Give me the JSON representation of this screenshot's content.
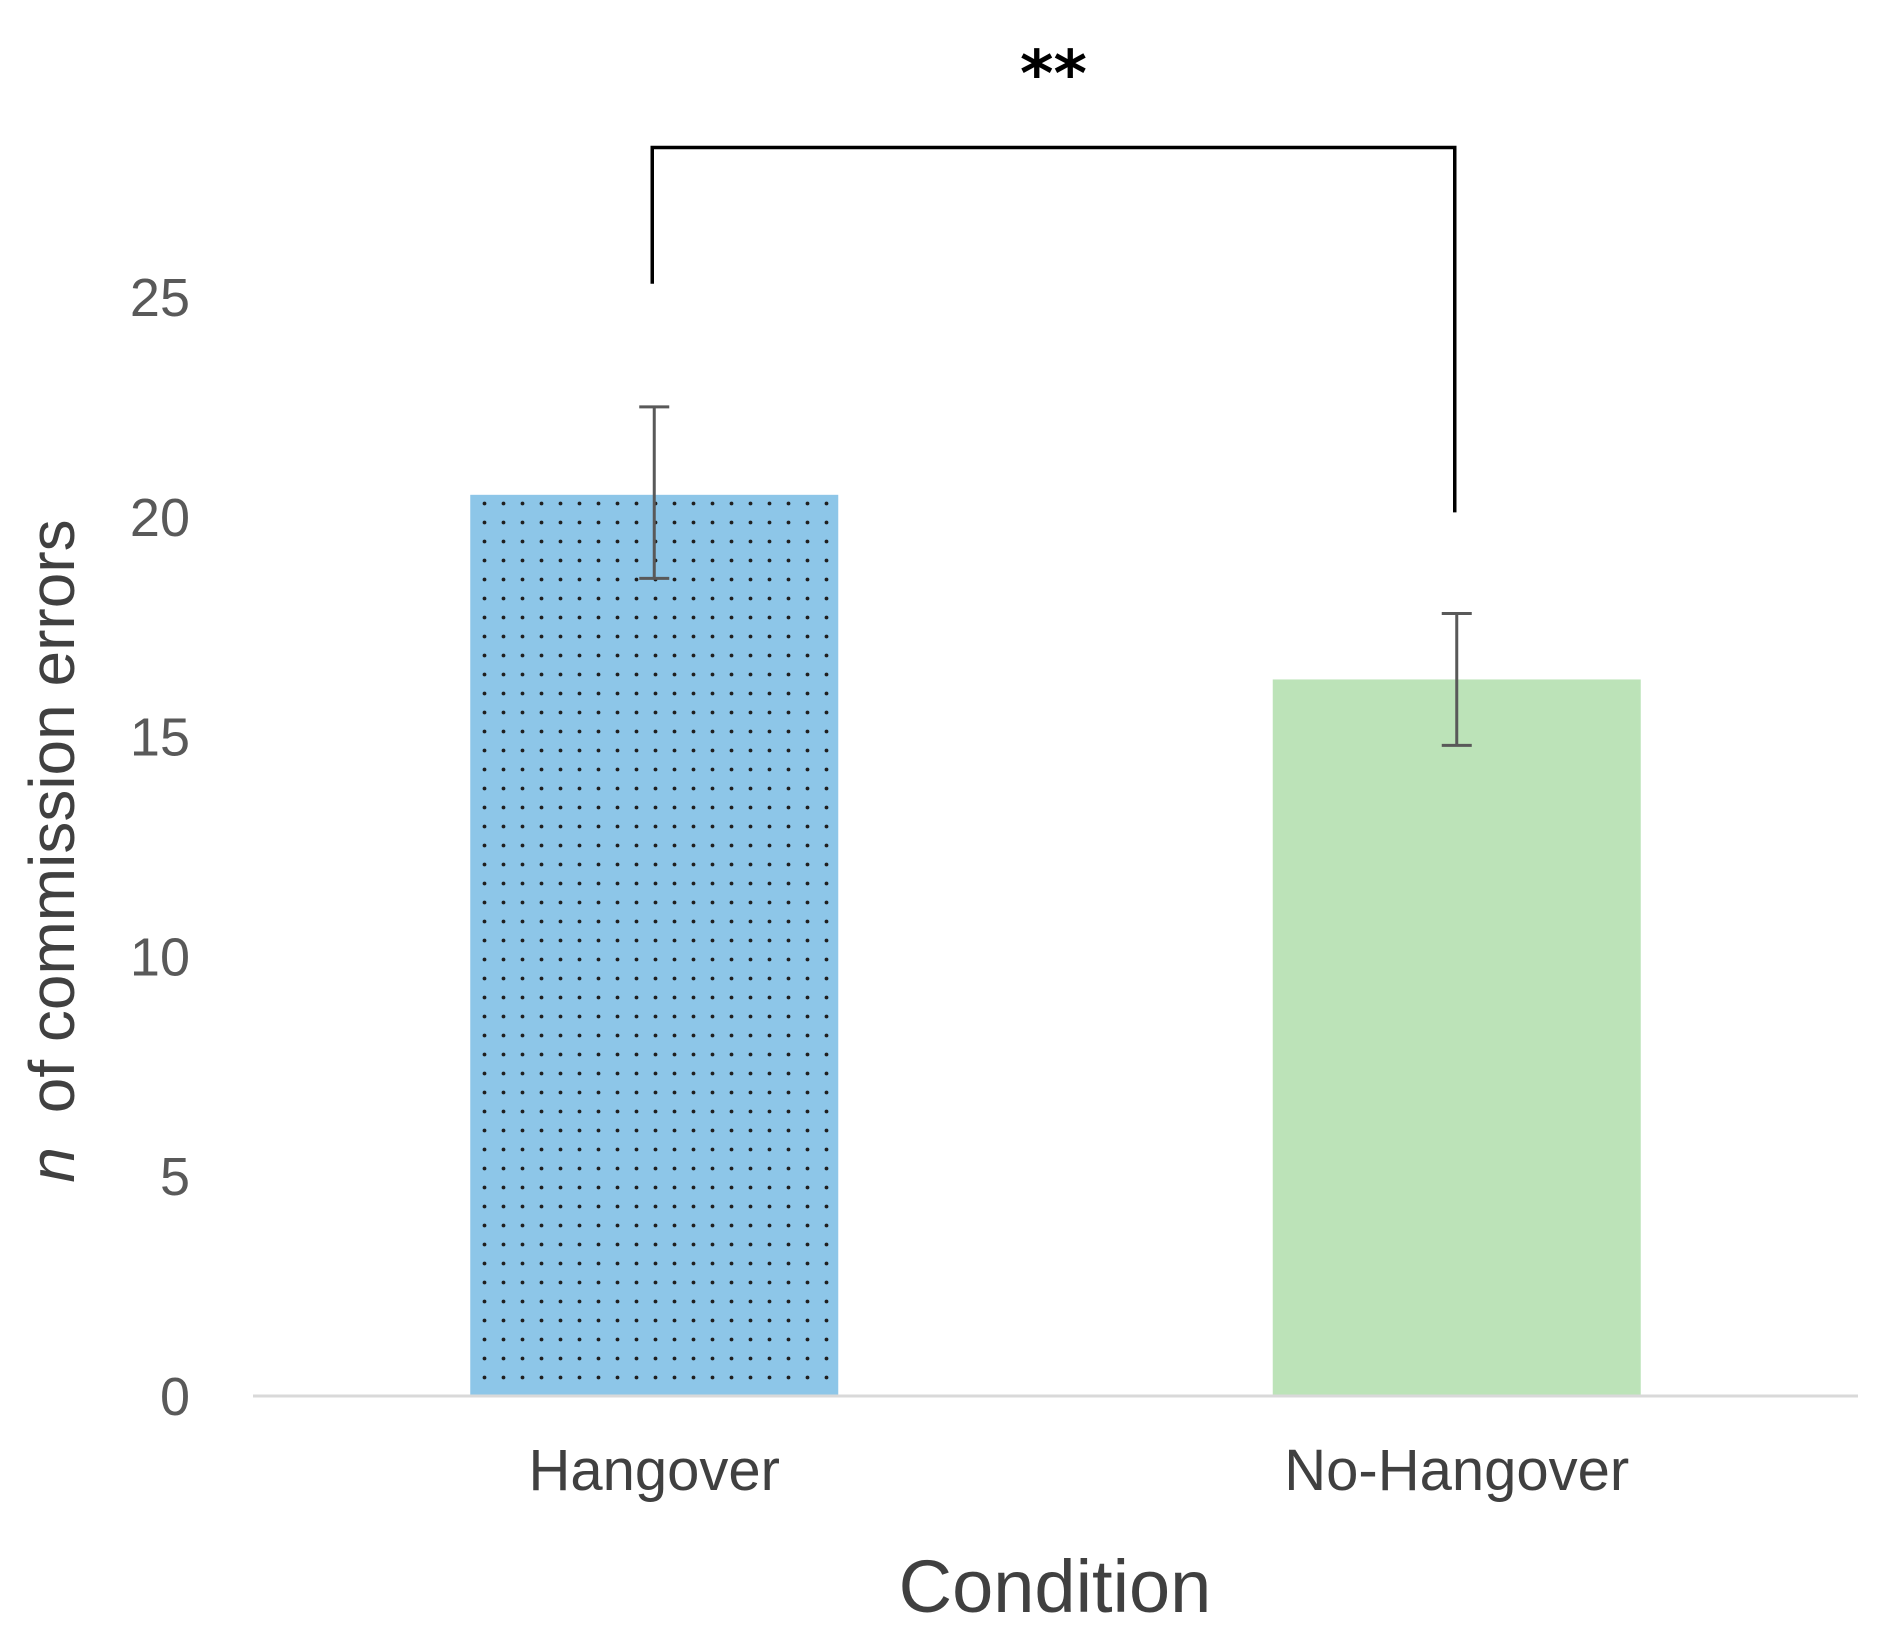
{
  "chart_data": {
    "type": "bar",
    "title": "",
    "categories": [
      "Hangover",
      "No-Hangover"
    ],
    "values": [
      20.5,
      16.3
    ],
    "error_bars": [
      {
        "low": 18.6,
        "high": 22.5
      },
      {
        "low": 14.8,
        "high": 17.8
      }
    ],
    "colors": [
      "#8dc6e8",
      "#bce3b8"
    ],
    "patterns": [
      "dots",
      "none"
    ],
    "xlabel": "Condition",
    "ylabel_italic": "n",
    "ylabel": "of commission errors",
    "ylim": [
      0,
      25
    ],
    "yticks": [
      "0",
      "5",
      "10",
      "15",
      "20",
      "25"
    ],
    "grid": false,
    "significance": {
      "label": "**",
      "between": [
        "Hangover",
        "No-Hangover"
      ],
      "left_end": 25.3,
      "right_end": 20.1,
      "top": 28.4
    }
  },
  "colors": {
    "axis": "#d9d9d9",
    "error_bar": "#595959",
    "bracket": "#000000",
    "dot": "#1f1f1f"
  }
}
